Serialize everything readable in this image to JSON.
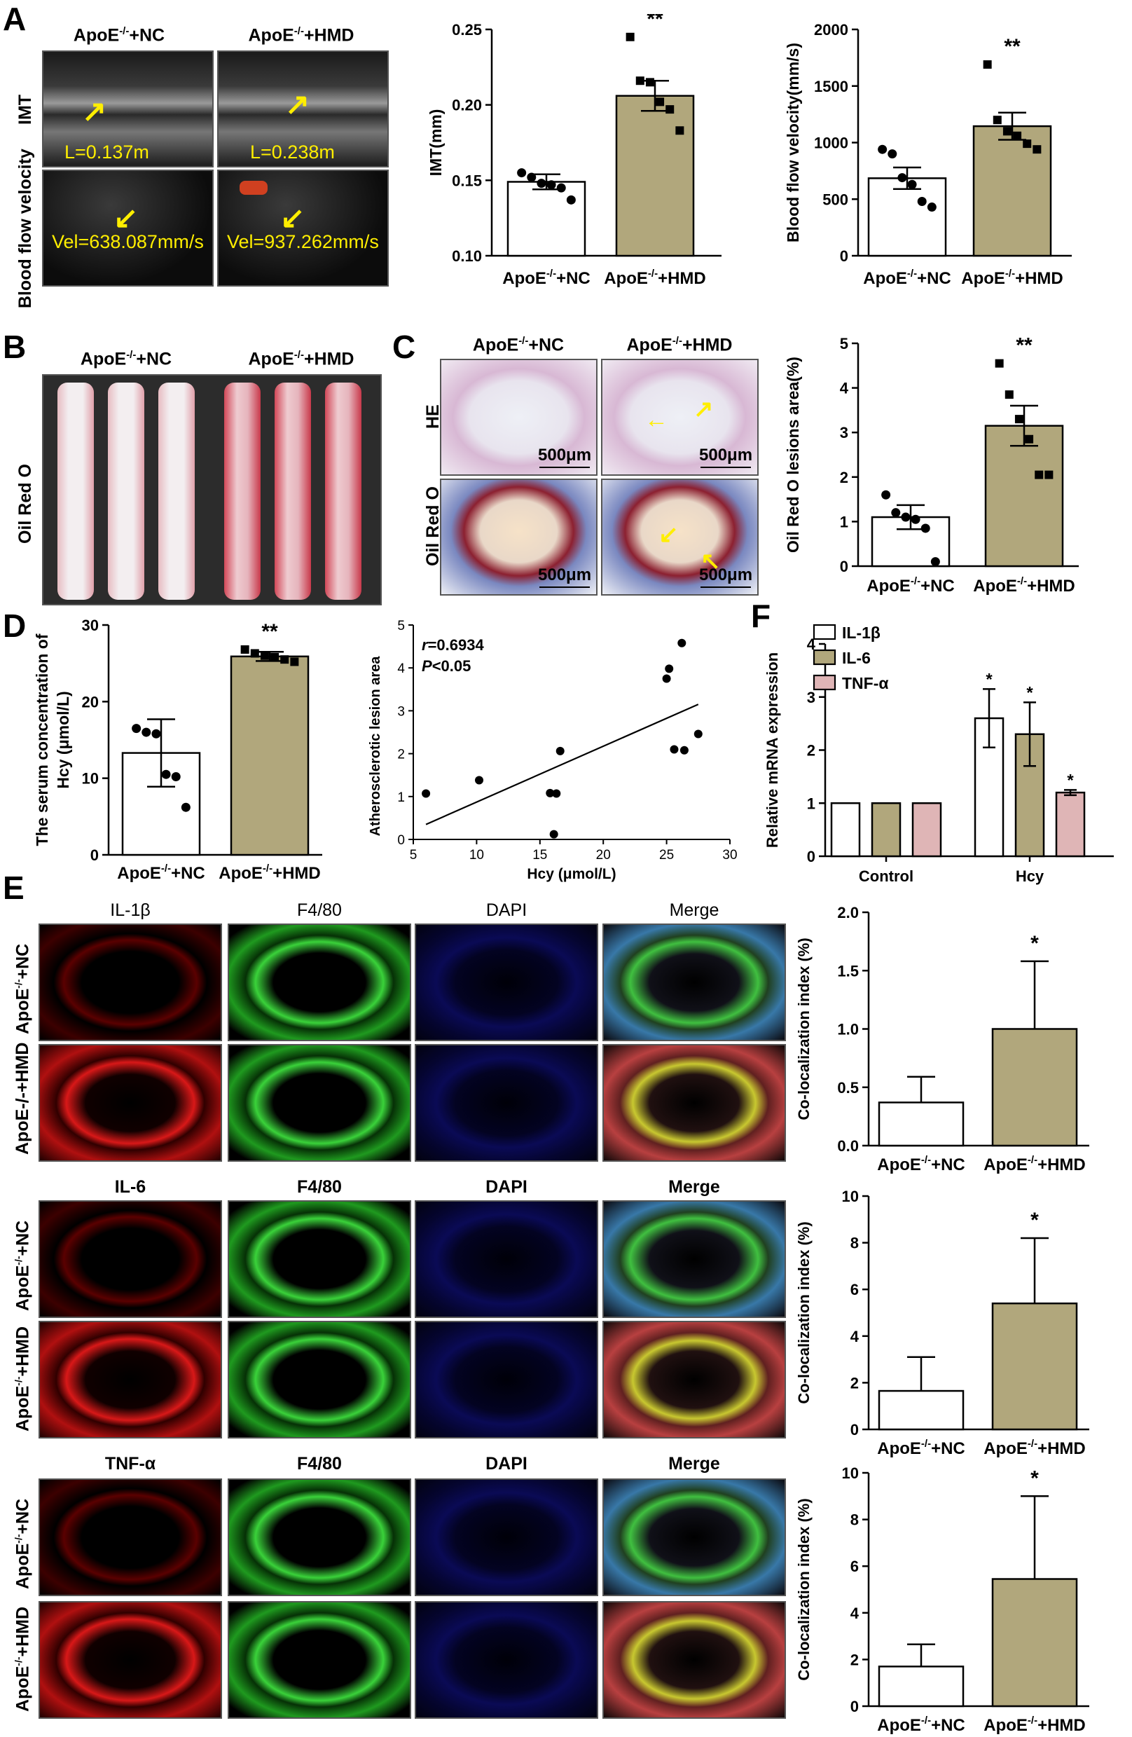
{
  "labels": {
    "A": "A",
    "B": "B",
    "C": "C",
    "D": "D",
    "E": "E",
    "F": "F"
  },
  "grp": {
    "nc_pre": "ApoE",
    "nc_post": "+NC",
    "hmd_post": "+HMD",
    "sup": "-/-"
  },
  "panelA": {
    "row_imt": "IMT",
    "row_bfv": "Blood flow velocity",
    "imt_nc": "L=0.137m",
    "imt_hmd": "L=0.238m",
    "vel_nc": "Vel=638.087mm/s",
    "vel_hmd": "Vel=937.262mm/s"
  },
  "panelB": {
    "row": "Oil Red O"
  },
  "panelC": {
    "row_he": "HE",
    "row_oro": "Oil Red O",
    "scale": "500μm"
  },
  "panelE": {
    "cols1": [
      "IL-1β",
      "F4/80",
      "DAPI",
      "Merge"
    ],
    "cols2": [
      "IL-6",
      "F4/80",
      "DAPI",
      "Merge"
    ],
    "cols3": [
      "TNF-α",
      "F4/80",
      "DAPI",
      "Merge"
    ],
    "row_hmd_alt": "ApoE-/-+HMD"
  },
  "colors": {
    "nc": "#ffffff",
    "hmd": "#b1a77c",
    "pink": "#dfb5b6"
  },
  "chart_data": [
    {
      "id": "A_imt",
      "type": "bar",
      "ylabel": "IMT(mm)",
      "ylim": [
        0.1,
        0.25
      ],
      "yticks": [
        0.1,
        0.15,
        0.2,
        0.25
      ],
      "categories": [
        "ApoE-/-+NC",
        "ApoE-/-+HMD"
      ],
      "values": [
        0.149,
        0.206
      ],
      "errors": [
        0.005,
        0.01
      ],
      "points": [
        [
          0.155,
          0.152,
          0.148,
          0.147,
          0.145,
          0.137
        ],
        [
          0.245,
          0.216,
          0.215,
          0.202,
          0.197,
          0.183
        ]
      ],
      "sig": [
        "",
        "**"
      ],
      "style": "sem"
    },
    {
      "id": "A_bfv",
      "type": "bar",
      "ylabel": "Blood flow velocity(mm/s)",
      "ylim": [
        0,
        2000
      ],
      "yticks": [
        0,
        500,
        1000,
        1500,
        2000
      ],
      "categories": [
        "ApoE-/-+NC",
        "ApoE-/-+HMD"
      ],
      "values": [
        685,
        1145
      ],
      "errors": [
        95,
        120
      ],
      "points": [
        [
          940,
          900,
          690,
          630,
          480,
          430
        ],
        [
          1690,
          1200,
          1100,
          1060,
          990,
          940
        ]
      ],
      "sig": [
        "",
        "**"
      ],
      "style": "sem"
    },
    {
      "id": "C_oro",
      "type": "bar",
      "ylabel": "Oil Red O lesions area(%)",
      "ylim": [
        0,
        5
      ],
      "yticks": [
        0,
        1,
        2,
        3,
        4,
        5
      ],
      "categories": [
        "ApoE-/-+NC",
        "ApoE-/-+HMD"
      ],
      "values": [
        1.1,
        3.15
      ],
      "errors": [
        0.27,
        0.45
      ],
      "points": [
        [
          1.6,
          1.2,
          1.1,
          1.05,
          0.85,
          0.1
        ],
        [
          4.55,
          3.85,
          3.3,
          2.85,
          2.05,
          2.05
        ]
      ],
      "sig": [
        "",
        "**"
      ],
      "style": "sem"
    },
    {
      "id": "D_hcy",
      "type": "bar",
      "ylabel": "The serum concentration of",
      "ylabel2": "Hcy (μmol/L)",
      "ylim": [
        0,
        30
      ],
      "yticks": [
        0,
        10,
        20,
        30
      ],
      "categories": [
        "ApoE-/-+NC",
        "ApoE-/-+HMD"
      ],
      "values": [
        13.3,
        25.9
      ],
      "errors": [
        4.4,
        0.6
      ],
      "points": [
        [
          16.5,
          16.0,
          15.8,
          10.5,
          10.2,
          6.2
        ],
        [
          26.8,
          26.3,
          26.0,
          25.8,
          25.5,
          25.2
        ]
      ],
      "sig": [
        "",
        "**"
      ],
      "style": "sd"
    },
    {
      "id": "D_corr",
      "type": "scatter",
      "xlabel": "Hcy (μmol/L)",
      "ylabel": "Atherosclerotic lesion area",
      "xlim": [
        5,
        30
      ],
      "ylim": [
        0,
        5
      ],
      "xticks": [
        5,
        10,
        15,
        20,
        25,
        30
      ],
      "yticks": [
        0,
        1,
        2,
        3,
        4,
        5
      ],
      "r_label": "r",
      "r_value": "=0.6934",
      "p_label": "P",
      "p_value": "<0.05",
      "x": [
        6.0,
        10.2,
        15.8,
        16.3,
        16.1,
        16.6,
        25.0,
        25.2,
        26.2,
        26.4,
        27.5,
        25.6
      ],
      "y": [
        1.07,
        1.38,
        1.08,
        1.07,
        0.12,
        2.06,
        3.75,
        3.98,
        4.58,
        2.08,
        2.46,
        2.1
      ],
      "fit": [
        [
          6,
          0.35
        ],
        [
          27.5,
          3.15
        ]
      ]
    },
    {
      "id": "F_mrna",
      "type": "bar",
      "ylabel": "Relative mRNA expression",
      "ylim": [
        0,
        4
      ],
      "yticks": [
        0,
        1,
        2,
        3,
        4
      ],
      "categories": [
        "Control",
        "Hcy"
      ],
      "series": [
        {
          "name": "IL-1β",
          "values": [
            1,
            2.6
          ],
          "errors": [
            0,
            0.55
          ],
          "sig": [
            "",
            "*"
          ]
        },
        {
          "name": "IL-6",
          "values": [
            1,
            2.3
          ],
          "errors": [
            0,
            0.6
          ],
          "sig": [
            "",
            "*"
          ]
        },
        {
          "name": "TNF-α",
          "values": [
            1,
            1.2
          ],
          "errors": [
            0,
            0.05
          ],
          "sig": [
            "",
            "*"
          ]
        }
      ]
    },
    {
      "id": "E1",
      "type": "bar",
      "ylabel": "Co-localization index (%)",
      "ylim": [
        0,
        2.0
      ],
      "yticks": [
        0.0,
        0.5,
        1.0,
        1.5,
        2.0
      ],
      "categories": [
        "ApoE-/-+NC",
        "ApoE-/-+HMD"
      ],
      "values": [
        0.37,
        1.0
      ],
      "errors": [
        0.22,
        0.58
      ],
      "sig": [
        "",
        "*"
      ],
      "style": "up"
    },
    {
      "id": "E2",
      "type": "bar",
      "ylabel": "Co-localization index (%)",
      "ylim": [
        0,
        10
      ],
      "yticks": [
        0,
        2,
        4,
        6,
        8,
        10
      ],
      "categories": [
        "ApoE-/-+NC",
        "ApoE-/-+HMD"
      ],
      "values": [
        1.65,
        5.4
      ],
      "errors": [
        1.45,
        2.8
      ],
      "sig": [
        "",
        "*"
      ],
      "style": "up"
    },
    {
      "id": "E3",
      "type": "bar",
      "ylabel": "Co-localization index (%)",
      "ylim": [
        0,
        10
      ],
      "yticks": [
        0,
        2,
        4,
        6,
        8,
        10
      ],
      "categories": [
        "ApoE-/-+NC",
        "ApoE-/-+HMD"
      ],
      "values": [
        1.7,
        5.45
      ],
      "errors": [
        0.95,
        3.55
      ],
      "sig": [
        "",
        "*"
      ],
      "style": "up"
    }
  ]
}
